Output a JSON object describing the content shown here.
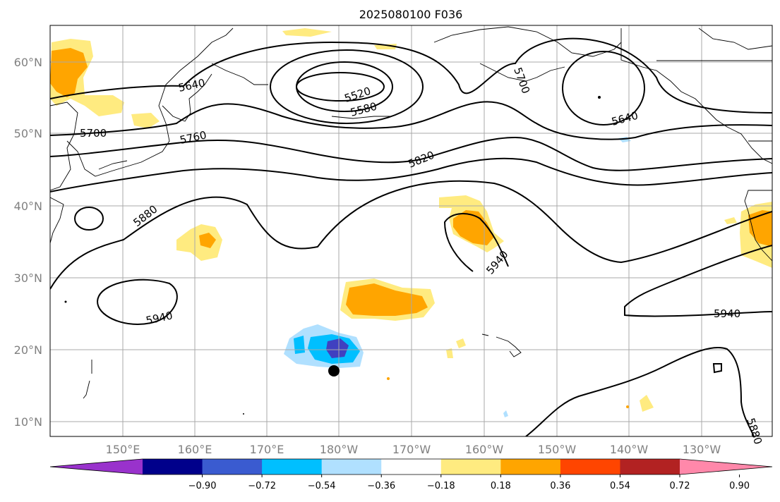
{
  "title": "2025080100 F036",
  "lat_ticks": [
    "60°N",
    "50°N",
    "40°N",
    "30°N",
    "20°N",
    "10°N"
  ],
  "lon_ticks": [
    "150°E",
    "160°E",
    "170°E",
    "180°W",
    "170°W",
    "160°W",
    "150°W",
    "140°W",
    "130°W"
  ],
  "colorbar": {
    "colors": [
      "#9932CC",
      "#00008B",
      "#3A5BD0",
      "#00BFFF",
      "#B0E0FF",
      "#FFFFFF",
      "#FFEB80",
      "#FFA500",
      "#FF4500",
      "#B22222",
      "#FF88AA"
    ],
    "labels": [
      "−0.90",
      "−0.72",
      "−0.54",
      "−0.36",
      "−0.18",
      "0.18",
      "0.36",
      "0.54",
      "0.72",
      "0.90"
    ]
  },
  "contour_labels": [
    "5520",
    "5580",
    "5640",
    "5640",
    "5700",
    "5700",
    "5760",
    "5820",
    "5880",
    "5880",
    "5940",
    "5940",
    "5940"
  ],
  "map_extent": {
    "lon": [
      "140°E",
      "120°W"
    ],
    "lat": [
      "8°N",
      "65°N"
    ]
  }
}
